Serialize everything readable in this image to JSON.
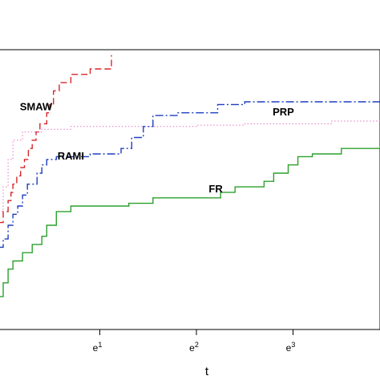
{
  "chart_data": {
    "type": "line",
    "step": true,
    "xlabel": "t",
    "ylabel": "",
    "x_scale": "log",
    "xlim": [
      -0.05,
      3.9
    ],
    "ylim": [
      0.0,
      1.02
    ],
    "x_ticks": [
      {
        "value": 1,
        "label": "e",
        "sup": "1"
      },
      {
        "value": 2,
        "label": "e",
        "sup": "2"
      },
      {
        "value": 3,
        "label": "e",
        "sup": "3"
      }
    ],
    "grid": false,
    "legend": "inline labels",
    "series": [
      {
        "name": "SMAW",
        "color": "#d62728",
        "dash": "dashed",
        "label_at": [
          0.34,
          0.8
        ],
        "points": [
          [
            -0.05,
            0.39
          ],
          [
            0.0,
            0.43
          ],
          [
            0.05,
            0.47
          ],
          [
            0.08,
            0.5
          ],
          [
            0.1,
            0.53
          ],
          [
            0.14,
            0.56
          ],
          [
            0.18,
            0.59
          ],
          [
            0.22,
            0.62
          ],
          [
            0.26,
            0.66
          ],
          [
            0.3,
            0.69
          ],
          [
            0.34,
            0.72
          ],
          [
            0.38,
            0.75
          ],
          [
            0.45,
            0.79
          ],
          [
            0.48,
            0.82
          ],
          [
            0.52,
            0.87
          ],
          [
            0.58,
            0.9
          ],
          [
            0.7,
            0.93
          ],
          [
            0.9,
            0.95
          ],
          [
            1.12,
            0.97
          ],
          [
            1.12,
            1.0
          ]
        ]
      },
      {
        "name": "PRP",
        "color": "#e377c2",
        "dash": "dotted",
        "label_at": [
          2.9,
          0.78
        ],
        "points": [
          [
            -0.05,
            0.43
          ],
          [
            0.0,
            0.52
          ],
          [
            0.05,
            0.62
          ],
          [
            0.1,
            0.69
          ],
          [
            0.2,
            0.72
          ],
          [
            0.4,
            0.73
          ],
          [
            0.7,
            0.74
          ],
          [
            1.5,
            0.74
          ],
          [
            2.0,
            0.745
          ],
          [
            2.5,
            0.75
          ],
          [
            3.2,
            0.75
          ],
          [
            3.4,
            0.76
          ],
          [
            3.9,
            0.76
          ]
        ]
      },
      {
        "name": "RAMI",
        "color": "#1f3fbf",
        "dash": "dashdot",
        "label_at": [
          0.7,
          0.62
        ],
        "points": [
          [
            -0.05,
            0.3
          ],
          [
            0.0,
            0.33
          ],
          [
            0.05,
            0.38
          ],
          [
            0.1,
            0.42
          ],
          [
            0.15,
            0.45
          ],
          [
            0.2,
            0.49
          ],
          [
            0.25,
            0.53
          ],
          [
            0.35,
            0.57
          ],
          [
            0.4,
            0.6
          ],
          [
            0.45,
            0.62
          ],
          [
            0.55,
            0.63
          ],
          [
            0.9,
            0.64
          ],
          [
            1.22,
            0.66
          ],
          [
            1.33,
            0.7
          ],
          [
            1.45,
            0.74
          ],
          [
            1.55,
            0.78
          ],
          [
            1.8,
            0.79
          ],
          [
            2.22,
            0.82
          ],
          [
            2.5,
            0.83
          ],
          [
            3.9,
            0.84
          ]
        ]
      },
      {
        "name": "FR",
        "color": "#2ca02c",
        "dash": "solid",
        "label_at": [
          2.2,
          0.5
        ],
        "points": [
          [
            -0.05,
            0.12
          ],
          [
            0.0,
            0.17
          ],
          [
            0.05,
            0.22
          ],
          [
            0.1,
            0.25
          ],
          [
            0.2,
            0.28
          ],
          [
            0.3,
            0.31
          ],
          [
            0.4,
            0.34
          ],
          [
            0.45,
            0.38
          ],
          [
            0.55,
            0.43
          ],
          [
            0.7,
            0.45
          ],
          [
            1.0,
            0.45
          ],
          [
            1.3,
            0.46
          ],
          [
            1.55,
            0.48
          ],
          [
            2.1,
            0.48
          ],
          [
            2.25,
            0.5
          ],
          [
            2.4,
            0.52
          ],
          [
            2.7,
            0.54
          ],
          [
            2.8,
            0.57
          ],
          [
            2.95,
            0.6
          ],
          [
            3.05,
            0.63
          ],
          [
            3.2,
            0.64
          ],
          [
            3.5,
            0.66
          ],
          [
            3.9,
            0.67
          ]
        ]
      }
    ]
  }
}
